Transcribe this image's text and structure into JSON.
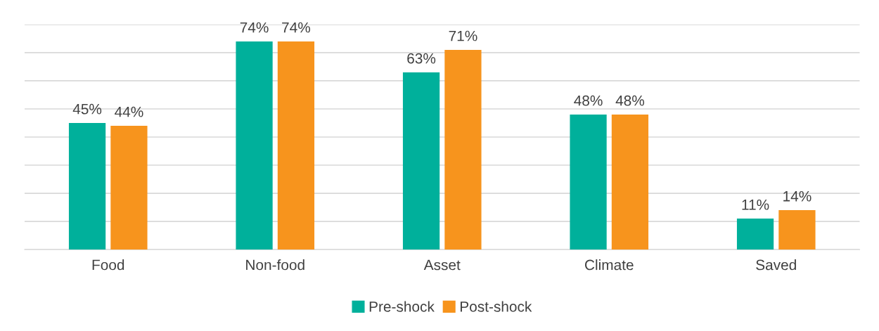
{
  "chart_data": {
    "type": "bar",
    "categories": [
      "Food",
      "Non-food",
      "Asset",
      "Climate",
      "Saved"
    ],
    "series": [
      {
        "name": "Pre-shock",
        "color": "#00b09b",
        "values": [
          45,
          74,
          63,
          48,
          11
        ],
        "value_labels": [
          "45%",
          "74%",
          "63%",
          "48%",
          "11%"
        ]
      },
      {
        "name": "Post-shock",
        "color": "#f7941d",
        "values": [
          44,
          74,
          71,
          48,
          14
        ],
        "value_labels": [
          "44%",
          "74%",
          "71%",
          "48%",
          "14%"
        ]
      }
    ],
    "ylim": [
      0,
      80
    ],
    "yticks": [
      {
        "value": 0,
        "label": null
      },
      {
        "value": 10,
        "label": null
      },
      {
        "value": 20,
        "label": null
      },
      {
        "value": 30,
        "label": null
      },
      {
        "value": 40,
        "label": null
      },
      {
        "value": 50,
        "label": null
      },
      {
        "value": 60,
        "label": null
      },
      {
        "value": 70,
        "label": null
      },
      {
        "value": 80,
        "label": null
      }
    ],
    "tick_labels": "x",
    "grid": "y",
    "legend": "bottom"
  }
}
